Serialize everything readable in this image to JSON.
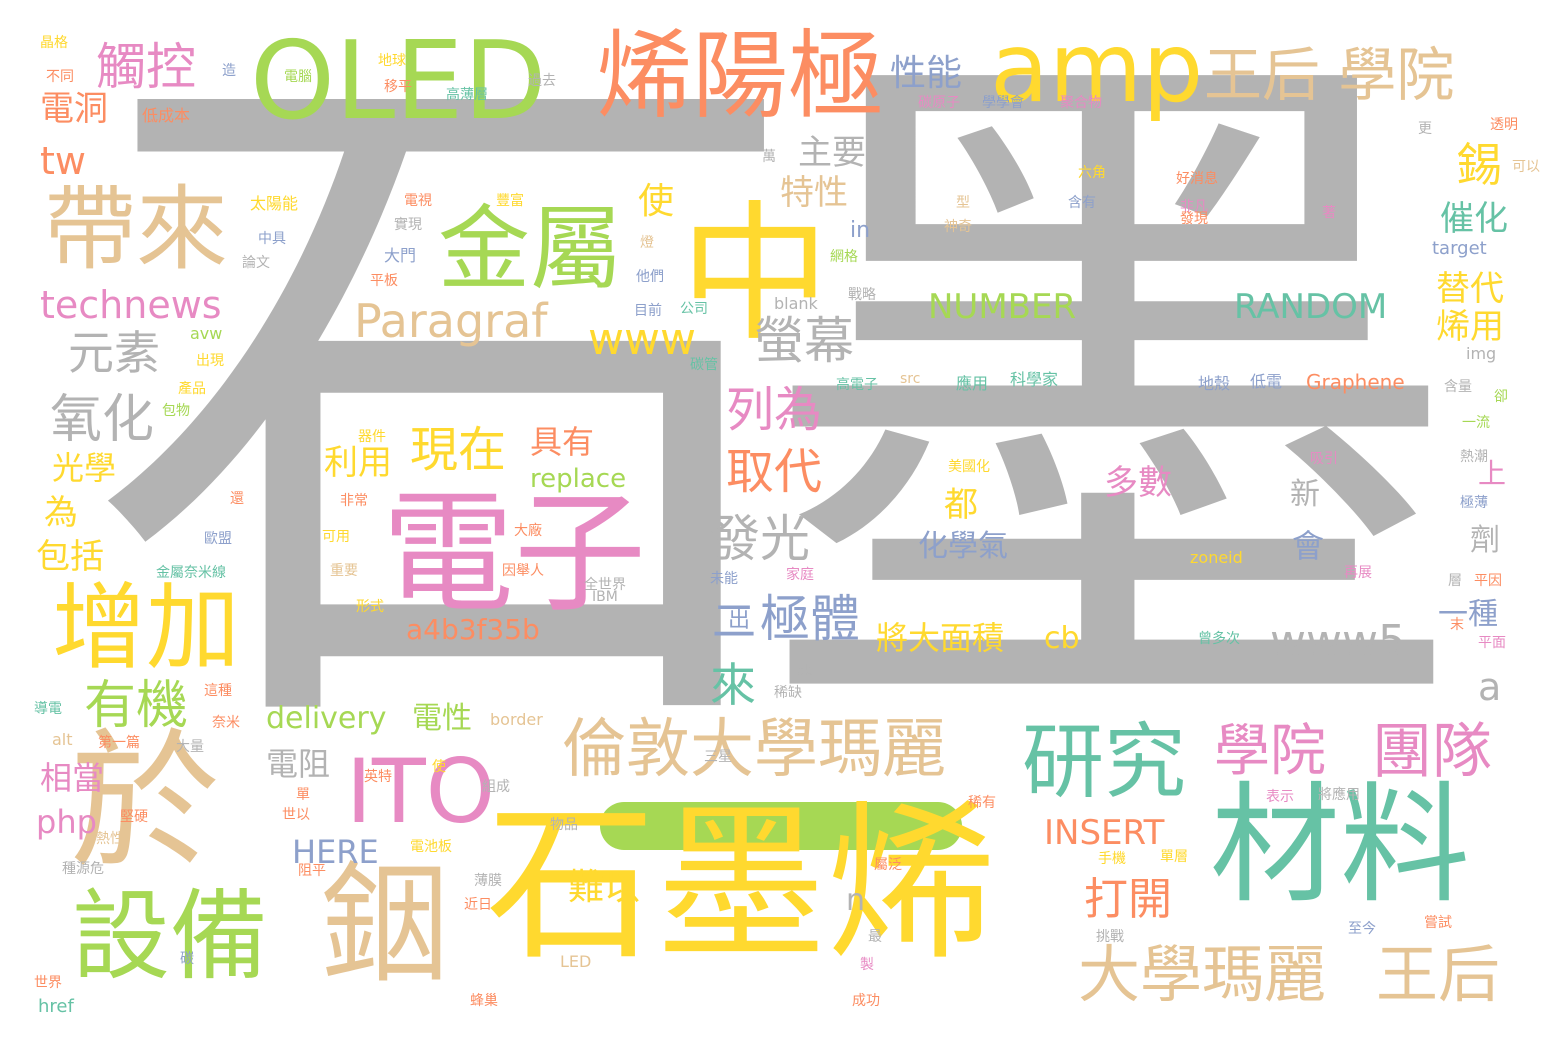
{
  "palette": {
    "gray": "#b3b3b3",
    "yellow": "#ffd92f",
    "green": "#a6d854",
    "pink": "#e78ac3",
    "teal": "#66c2a5",
    "orange": "#fc8d62",
    "tan": "#e5c494",
    "blue": "#8da0cb"
  },
  "words": [
    "石墨",
    "石墨烯",
    "中",
    "電子",
    "於",
    "OLED",
    "烯陽極",
    "amp",
    "材料",
    "設備",
    "銦",
    "帶來",
    "金屬",
    "增加",
    "ITO",
    "研究",
    "倫敦大學瑪麗",
    "王后 學院",
    "大學瑪麗",
    "王后",
    "學院",
    "團隊",
    "觸控",
    "Paragraf",
    "technews",
    "www",
    "元素",
    "氧化",
    "螢幕",
    "列為",
    "取代",
    "發光",
    "極體",
    "有機",
    "現在",
    "具有",
    "利用",
    "replace",
    "a4b3f35b",
    "www5",
    "NUMBER",
    "RANDOM",
    "打開",
    "難以",
    "INSERT",
    "HERE",
    "delivery",
    "電性",
    "php",
    "相當",
    "電阻",
    "錫",
    "催化",
    "替代",
    "烯用",
    "tw",
    "電洞",
    "性能",
    "主要",
    "特性",
    "使",
    "光學",
    "包括",
    "為",
    "化學氣",
    "將大面積",
    "cb",
    "多數",
    "新",
    "會",
    "一種",
    "都",
    "來",
    "二",
    "出",
    "n",
    "a",
    "劑",
    "上",
    "in",
    "Graphene",
    "target",
    "img",
    "zoneid",
    "blank",
    "border",
    "alt",
    "href",
    "LED",
    "ck",
    "avw",
    "src",
    "晶格",
    "不同",
    "低成本",
    "電腦",
    "地球",
    "移平",
    "過去",
    "高薄層",
    "碳原子",
    "學學會",
    "聚合物",
    "透明",
    "可以",
    "太陽能",
    "電視",
    "豐富",
    "實現",
    "中具",
    "論文",
    "大門",
    "平板",
    "燈",
    "他們",
    "目前",
    "公司",
    "網格",
    "戰略",
    "碳管",
    "高電子",
    "應用",
    "科學家",
    "地殼",
    "低電",
    "含量",
    "出現",
    "產品",
    "包物",
    "器件",
    "非常",
    "可用",
    "重要",
    "形式",
    "大廠",
    "因舉人",
    "全世界",
    "IBM",
    "金屬奈米線",
    "歐盟",
    "還",
    "未能",
    "家庭",
    "美國化",
    "吸引",
    "熱潮",
    "極薄",
    "再展",
    "平因",
    "層",
    "曾多次",
    "平面",
    "末",
    "導電",
    "這種",
    "奈米",
    "第一篇",
    "大量",
    "三星",
    "英特",
    "稀缺",
    "組成",
    "物品",
    "堅硬",
    "世以",
    "熱性",
    "種源危",
    "薄膜",
    "近日",
    "電池板",
    "阻平",
    "屬泛",
    "手機",
    "單層",
    "稀有",
    "表示",
    "將應用",
    "挑戰",
    "至今",
    "嘗試",
    "最",
    "製",
    "成功",
    "蜂巢",
    "碳",
    "世界",
    "好消息",
    "非凡",
    "發現",
    "著",
    "型",
    "神奇",
    "六角",
    "含有",
    "一流",
    "卻",
    "更",
    "萬",
    "單",
    "造",
    "使"
  ]
}
